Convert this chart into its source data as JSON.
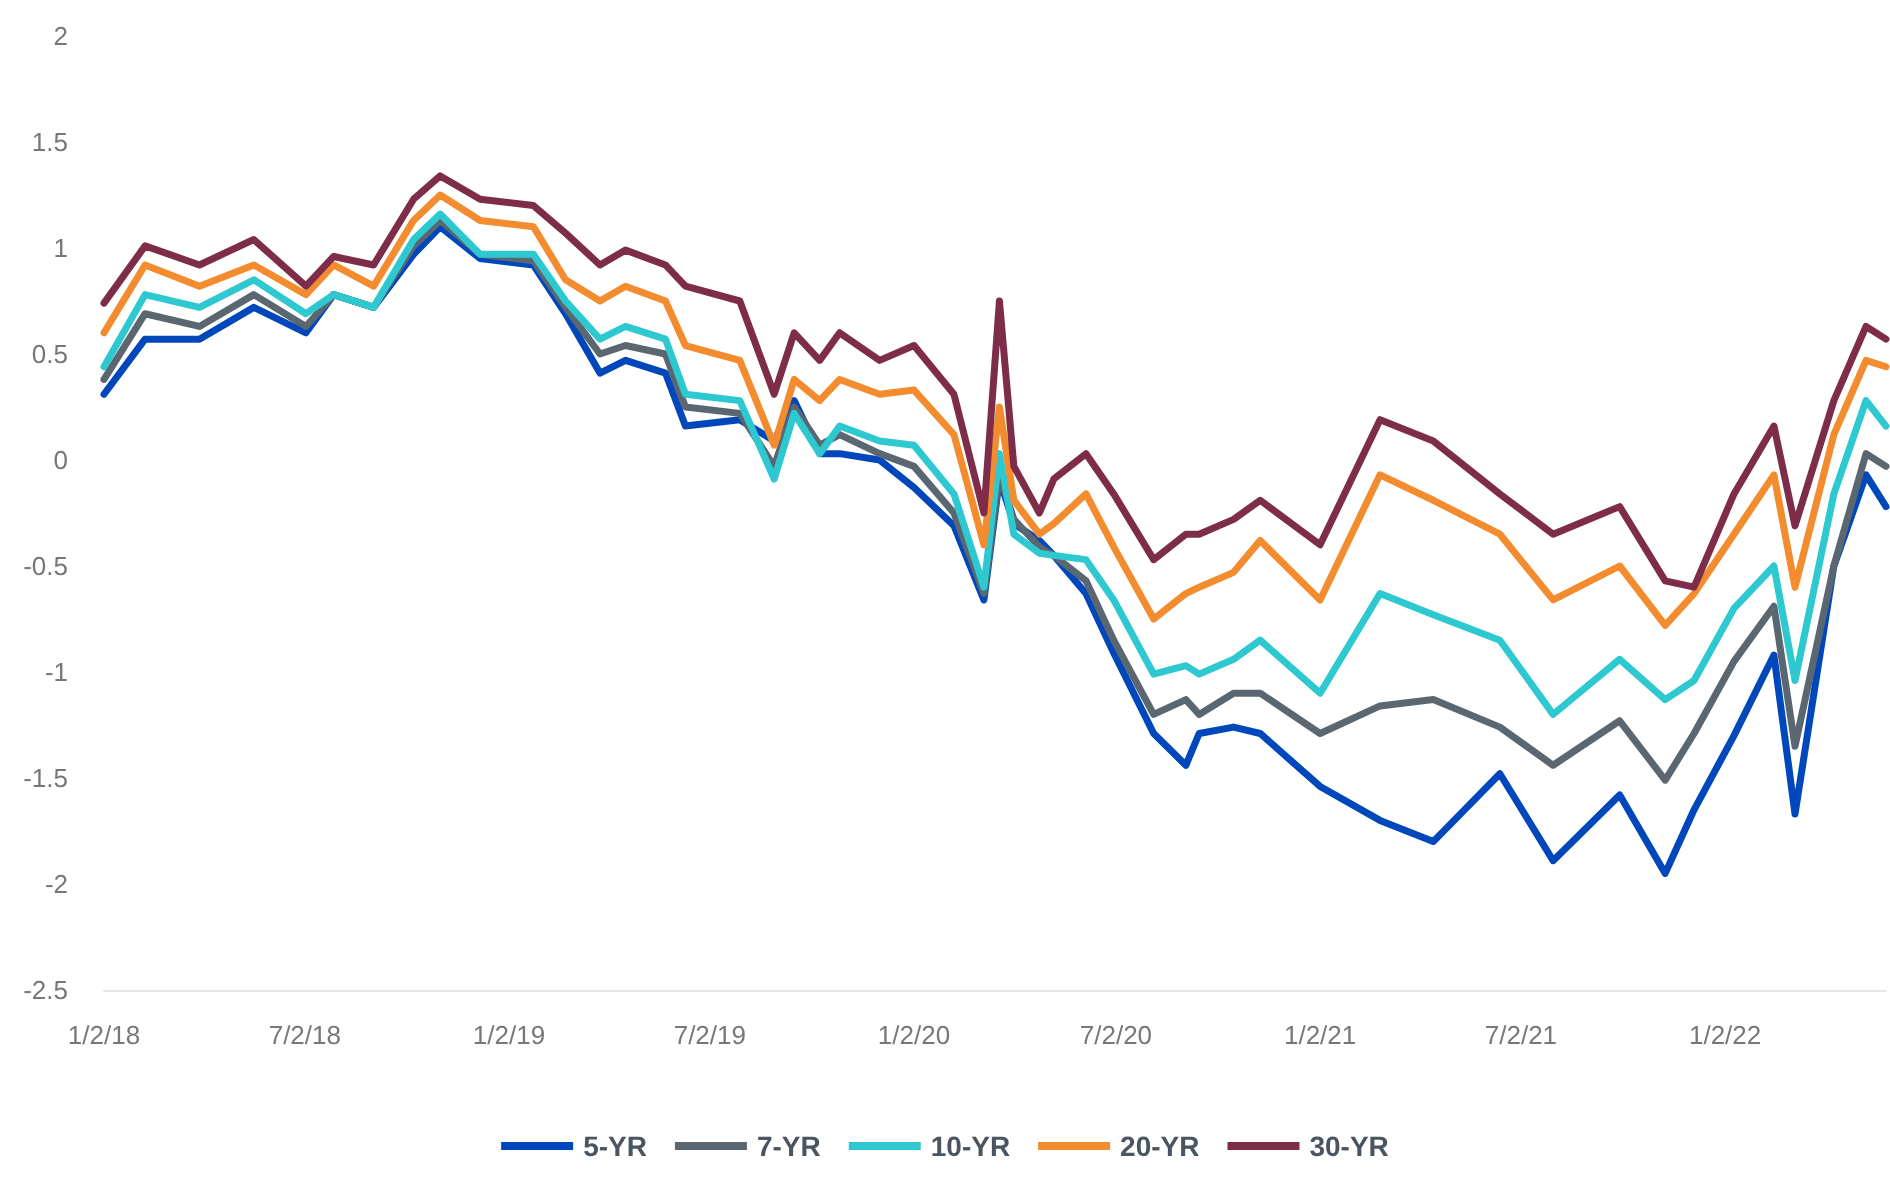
{
  "chart_data": {
    "type": "line",
    "x": [
      "2018-01-02",
      "2018-02-08",
      "2018-03-29",
      "2018-05-17",
      "2018-07-03",
      "2018-07-28",
      "2018-09-02",
      "2018-10-08",
      "2018-11-01",
      "2018-12-07",
      "2019-01-24",
      "2019-02-22",
      "2019-03-25",
      "2019-04-17",
      "2019-05-23",
      "2019-06-10",
      "2019-07-29",
      "2019-08-29",
      "2019-09-16",
      "2019-10-09",
      "2019-10-27",
      "2019-12-02",
      "2020-01-02",
      "2020-02-07",
      "2020-03-05",
      "2020-03-19",
      "2020-04-01",
      "2020-04-24",
      "2020-05-07",
      "2020-06-05",
      "2020-06-30",
      "2020-08-05",
      "2020-09-03",
      "2020-09-15",
      "2020-10-16",
      "2020-11-09",
      "2021-01-02",
      "2021-02-25",
      "2021-04-14",
      "2021-06-13",
      "2021-07-31",
      "2021-09-29",
      "2021-11-09",
      "2021-12-05",
      "2022-01-10",
      "2022-02-15",
      "2022-03-06",
      "2022-04-10",
      "2022-05-09",
      "2022-05-27"
    ],
    "series": [
      {
        "name": "5-YR",
        "color": "#0047bb",
        "values": [
          0.31,
          0.57,
          0.57,
          0.72,
          0.6,
          0.78,
          0.72,
          0.97,
          1.1,
          0.95,
          0.92,
          0.69,
          0.41,
          0.47,
          0.41,
          0.16,
          0.19,
          0.09,
          0.28,
          0.03,
          0.03,
          0.0,
          -0.13,
          -0.31,
          -0.66,
          -0.09,
          -0.3,
          -0.38,
          -0.45,
          -0.63,
          -0.91,
          -1.29,
          -1.44,
          -1.29,
          -1.26,
          -1.29,
          -1.54,
          -1.7,
          -1.8,
          -1.48,
          -1.89,
          -1.58,
          -1.95,
          -1.65,
          -1.3,
          -0.92,
          -1.67,
          -0.5,
          -0.07,
          -0.22
        ]
      },
      {
        "name": "7-YR",
        "color": "#5b6770",
        "values": [
          0.38,
          0.69,
          0.63,
          0.78,
          0.63,
          0.78,
          0.72,
          1.01,
          1.13,
          0.97,
          0.94,
          0.72,
          0.5,
          0.54,
          0.5,
          0.25,
          0.22,
          -0.03,
          0.25,
          0.07,
          0.12,
          0.03,
          -0.03,
          -0.25,
          -0.63,
          -0.07,
          -0.28,
          -0.41,
          -0.45,
          -0.57,
          -0.85,
          -1.2,
          -1.13,
          -1.2,
          -1.1,
          -1.1,
          -1.29,
          -1.16,
          -1.13,
          -1.26,
          -1.44,
          -1.23,
          -1.51,
          -1.29,
          -0.95,
          -0.69,
          -1.35,
          -0.5,
          0.03,
          -0.03
        ]
      },
      {
        "name": "10-YR",
        "color": "#2ec8d0",
        "values": [
          0.44,
          0.78,
          0.72,
          0.85,
          0.69,
          0.78,
          0.72,
          1.04,
          1.16,
          0.97,
          0.97,
          0.75,
          0.57,
          0.63,
          0.57,
          0.31,
          0.28,
          -0.09,
          0.22,
          0.03,
          0.16,
          0.09,
          0.07,
          -0.16,
          -0.6,
          0.03,
          -0.35,
          -0.44,
          -0.45,
          -0.47,
          -0.66,
          -1.01,
          -0.97,
          -1.01,
          -0.94,
          -0.85,
          -1.1,
          -0.63,
          -0.73,
          -0.85,
          -1.2,
          -0.94,
          -1.13,
          -1.04,
          -0.7,
          -0.5,
          -1.04,
          -0.16,
          0.28,
          0.16
        ]
      },
      {
        "name": "20-YR",
        "color": "#f28c2e",
        "values": [
          0.6,
          0.92,
          0.82,
          0.92,
          0.78,
          0.92,
          0.82,
          1.13,
          1.25,
          1.13,
          1.1,
          0.85,
          0.75,
          0.82,
          0.75,
          0.54,
          0.47,
          0.07,
          0.38,
          0.28,
          0.38,
          0.31,
          0.33,
          0.12,
          -0.4,
          0.25,
          -0.19,
          -0.35,
          -0.3,
          -0.16,
          -0.41,
          -0.75,
          -0.63,
          -0.6,
          -0.53,
          -0.38,
          -0.66,
          -0.07,
          -0.19,
          -0.35,
          -0.66,
          -0.5,
          -0.78,
          -0.63,
          -0.35,
          -0.07,
          -0.6,
          0.12,
          0.47,
          0.44
        ]
      },
      {
        "name": "30-YR",
        "color": "#7d2c4a",
        "values": [
          0.74,
          1.01,
          0.92,
          1.04,
          0.82,
          0.96,
          0.92,
          1.23,
          1.34,
          1.23,
          1.2,
          1.07,
          0.92,
          0.99,
          0.92,
          0.82,
          0.75,
          0.31,
          0.6,
          0.47,
          0.6,
          0.47,
          0.54,
          0.31,
          -0.25,
          0.75,
          -0.03,
          -0.25,
          -0.09,
          0.03,
          -0.16,
          -0.47,
          -0.35,
          -0.35,
          -0.28,
          -0.19,
          -0.4,
          0.19,
          0.09,
          -0.16,
          -0.35,
          -0.22,
          -0.57,
          -0.6,
          -0.16,
          0.16,
          -0.31,
          0.28,
          0.63,
          0.57
        ]
      }
    ],
    "xticks": [
      {
        "value": "2018-01-02",
        "label": "1/2/18"
      },
      {
        "value": "2018-07-02",
        "label": "7/2/18"
      },
      {
        "value": "2019-01-02",
        "label": "1/2/19"
      },
      {
        "value": "2019-07-02",
        "label": "7/2/19"
      },
      {
        "value": "2020-01-02",
        "label": "1/2/20"
      },
      {
        "value": "2020-07-02",
        "label": "7/2/20"
      },
      {
        "value": "2021-01-02",
        "label": "1/2/21"
      },
      {
        "value": "2021-07-02",
        "label": "7/2/21"
      },
      {
        "value": "2022-01-02",
        "label": "1/2/22"
      }
    ],
    "xlim": [
      "2018-01-02",
      "2022-05-27"
    ],
    "ylim": [
      -2.5,
      2
    ],
    "yticks": [
      -2.5,
      -2,
      -1.5,
      -1,
      -0.5,
      0,
      0.5,
      1,
      1.5,
      2
    ],
    "grid": false,
    "legend": "bottom",
    "marker": "none",
    "line_style": "solid"
  }
}
